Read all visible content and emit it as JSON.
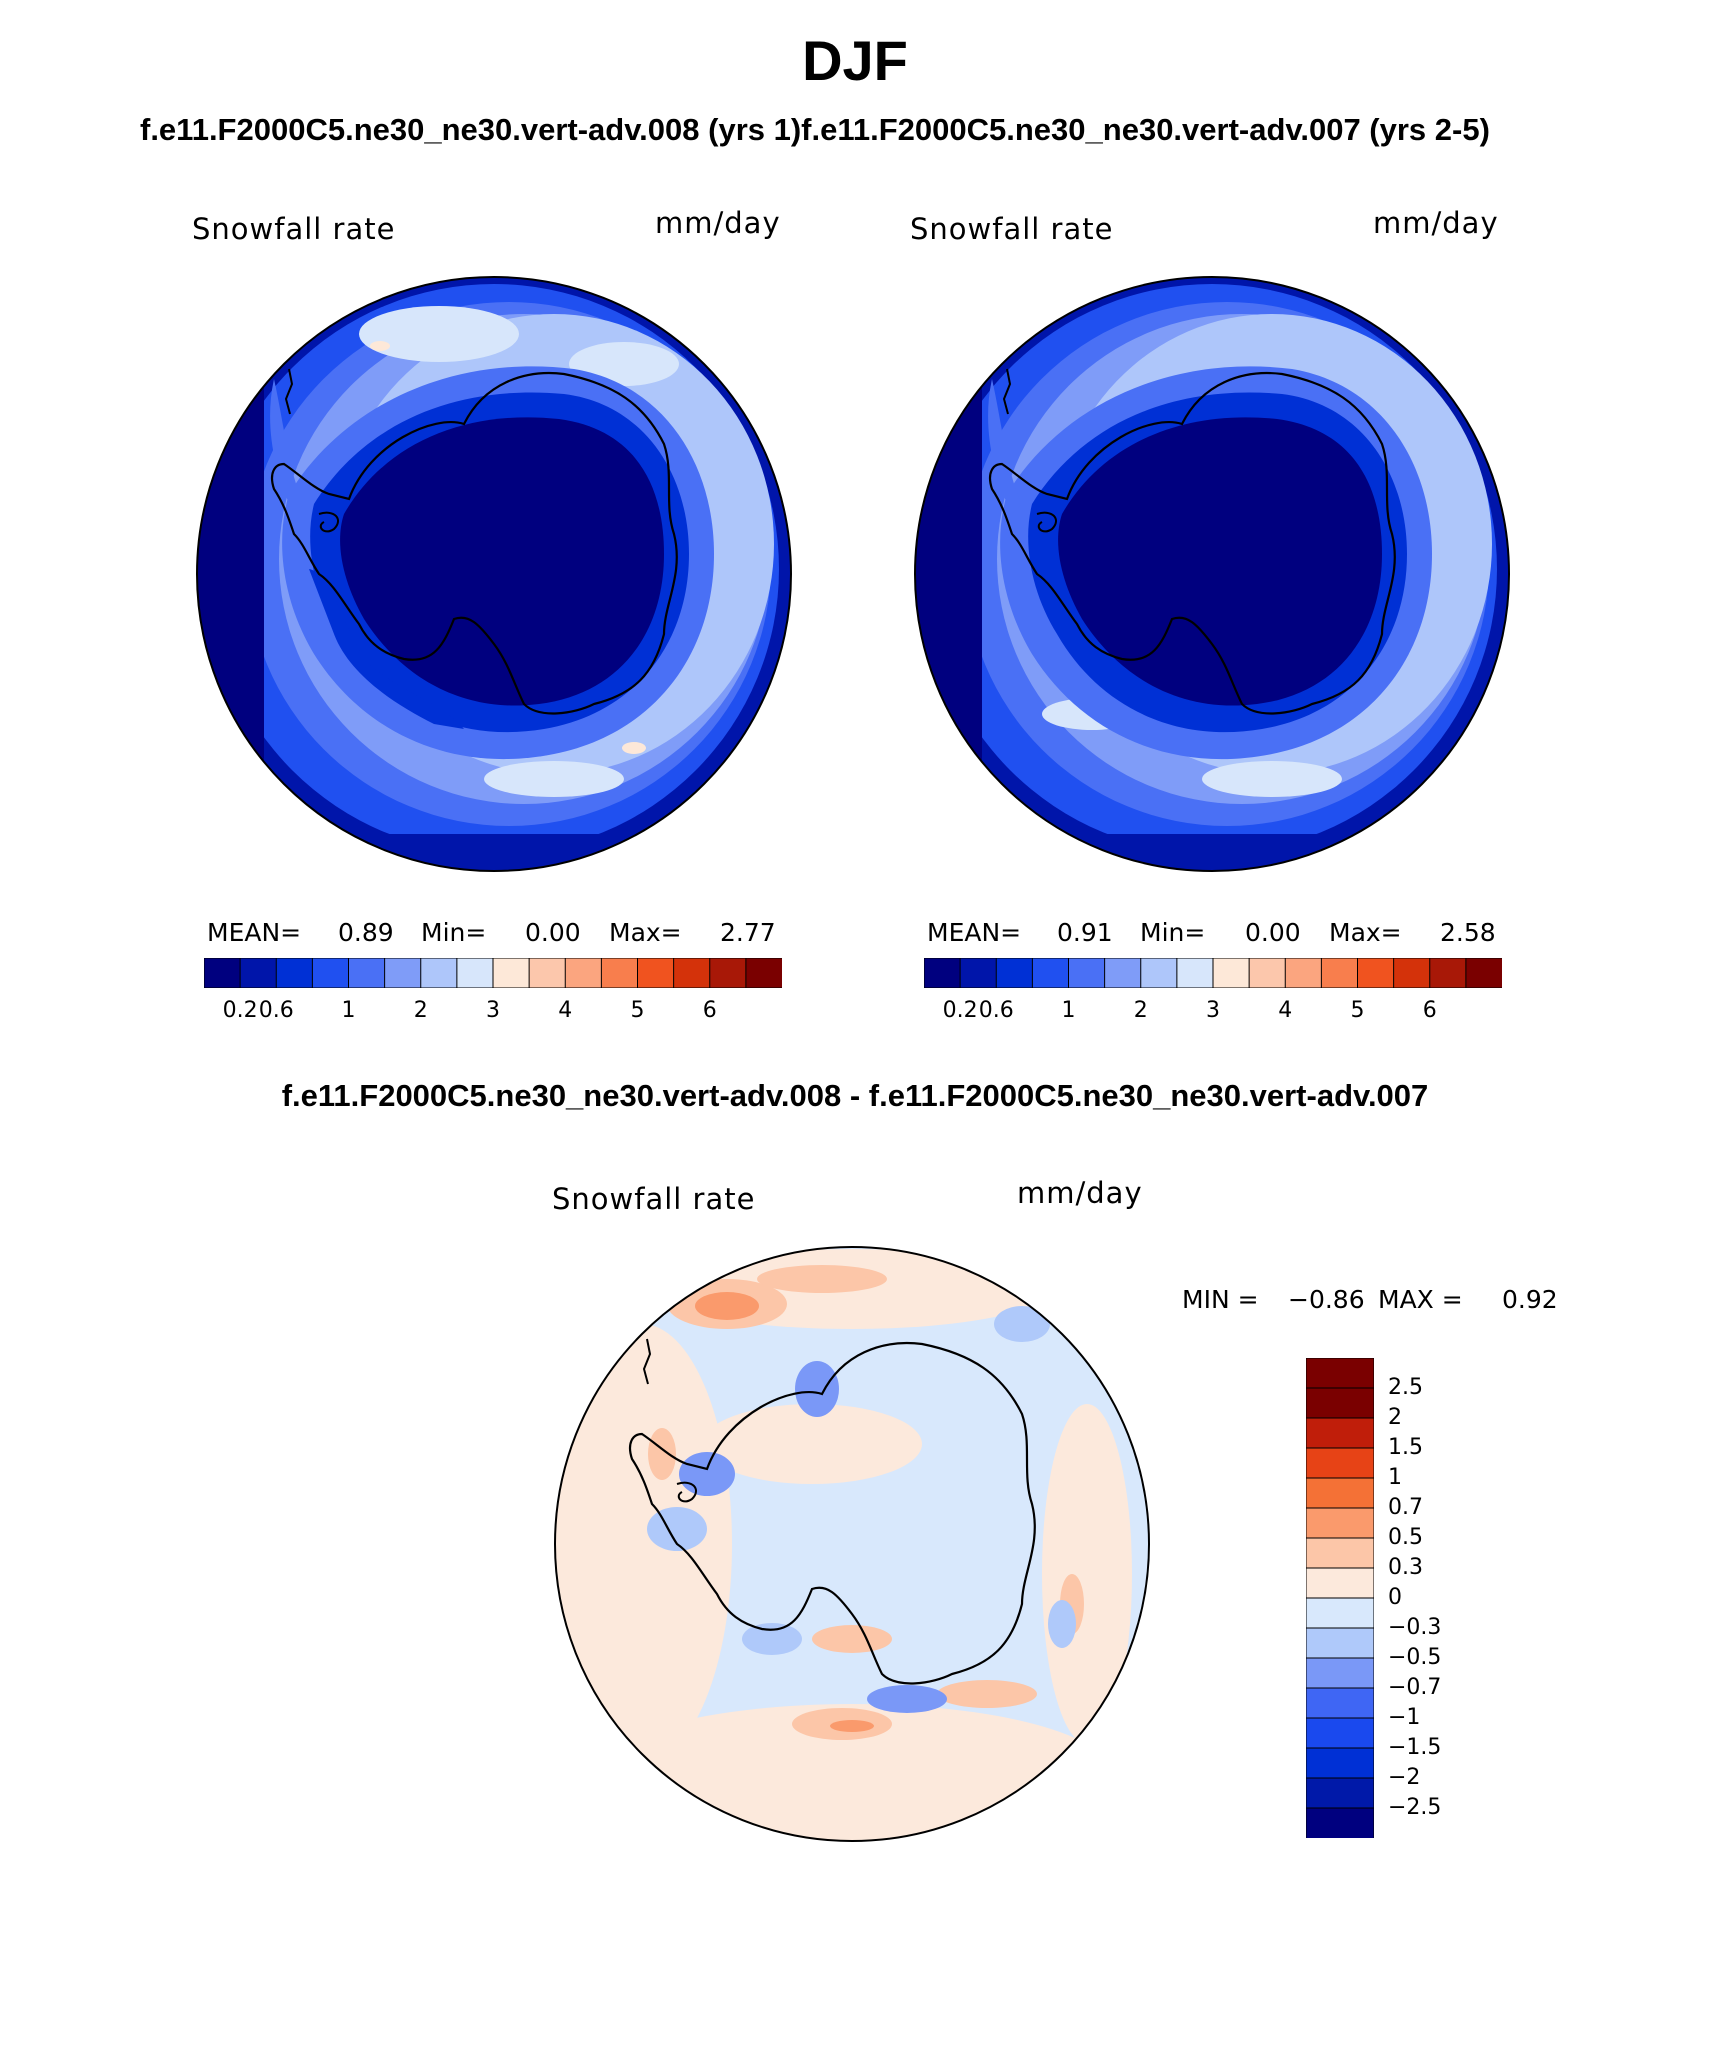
{
  "header": {
    "season": "DJF",
    "runs_title": "f.e11.F2000C5.ne30_ne30.vert-adv.008 (yrs 1)f.e11.F2000C5.ne30_ne30.vert-adv.007 (yrs 2-5)",
    "diff_title": "f.e11.F2000C5.ne30_ne30.vert-adv.008 - f.e11.F2000C5.ne30_ne30.vert-adv.007"
  },
  "colors": {
    "seq": [
      "#00007f",
      "#0015aa",
      "#0030d5",
      "#2050f0",
      "#4a70f5",
      "#7f9cf8",
      "#aec6fa",
      "#d7e6fb",
      "#fde8d8",
      "#fcc7ac",
      "#fba57f",
      "#f87e4d",
      "#f0531f",
      "#d4320a",
      "#a81807",
      "#7a0000"
    ],
    "div": [
      "#00007f",
      "#0019a9",
      "#0030d5",
      "#1a49ee",
      "#3f66f4",
      "#7a98f7",
      "#afc9fa",
      "#d8e8fc",
      "#fce9dc",
      "#fcc6a8",
      "#fa9a6c",
      "#f47136",
      "#e74316",
      "#c01e0a",
      "#7a0000"
    ]
  },
  "chart_data": [
    {
      "type": "heatmap",
      "projection": "south-polar-stereographic",
      "title": "Snowfall rate",
      "units": "mm/day",
      "stats": {
        "mean_label": "MEAN=",
        "mean": "0.89",
        "min_label": "Min=",
        "min": "0.00",
        "max_label": "Max=",
        "max": "2.77"
      },
      "colorbar_levels": [
        "0.2",
        "0.6",
        "1",
        "2",
        "3",
        "4",
        "5",
        "6"
      ]
    },
    {
      "type": "heatmap",
      "projection": "south-polar-stereographic",
      "title": "Snowfall rate",
      "units": "mm/day",
      "stats": {
        "mean_label": "MEAN=",
        "mean": "0.91",
        "min_label": "Min=",
        "min": "0.00",
        "max_label": "Max=",
        "max": "2.58"
      },
      "colorbar_levels": [
        "0.2",
        "0.6",
        "1",
        "2",
        "3",
        "4",
        "5",
        "6"
      ]
    },
    {
      "type": "heatmap",
      "projection": "south-polar-stereographic",
      "title": "Snowfall rate",
      "units": "mm/day",
      "stats": {
        "min_label": "MIN =",
        "min": "−0.86",
        "max_label": "MAX =",
        "max": "0.92"
      },
      "colorbar_levels": [
        "2.5",
        "2",
        "1.5",
        "1",
        "0.7",
        "0.5",
        "0.3",
        "0",
        "−0.3",
        "−0.5",
        "−0.7",
        "−1",
        "−1.5",
        "−2",
        "−2.5"
      ]
    }
  ]
}
